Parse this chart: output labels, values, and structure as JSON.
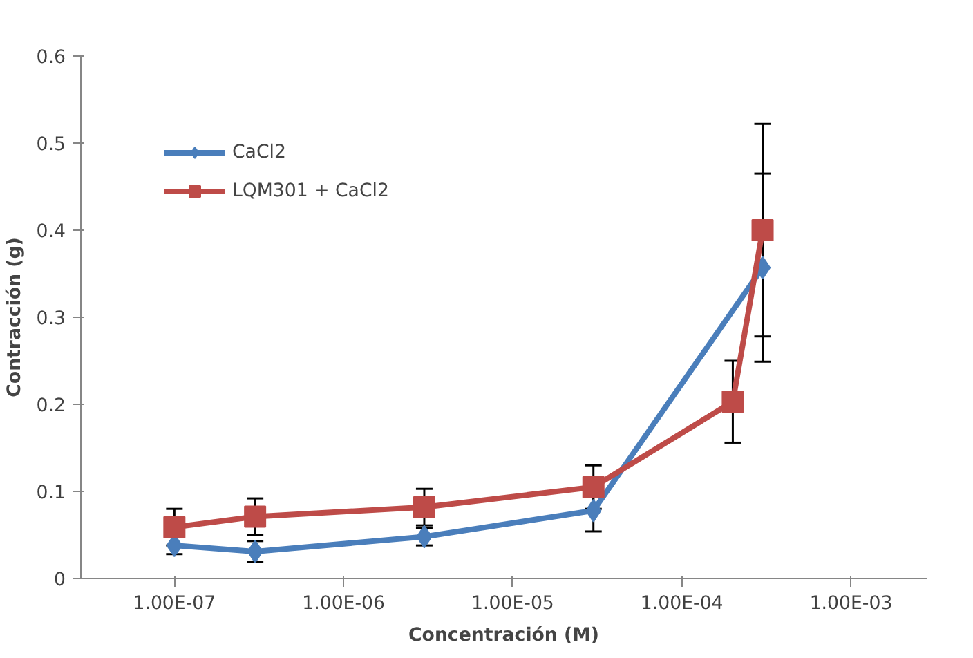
{
  "chart_data": {
    "type": "line",
    "xlabel": "Concentración (M)",
    "ylabel": "Contracción (g)",
    "x": [
      1e-07,
      3e-07,
      3e-06,
      3e-05,
      0.0002,
      0.0003
    ],
    "log": "x",
    "xlim": [
      2.8e-08,
      0.0028
    ],
    "xticks": [
      {
        "value": 1e-07,
        "label": "1.00E-07"
      },
      {
        "value": 1e-06,
        "label": "1.00E-06"
      },
      {
        "value": 1e-05,
        "label": "1.00E-05"
      },
      {
        "value": 0.0001,
        "label": "1.00E-04"
      },
      {
        "value": 0.001,
        "label": "1.00E-03"
      }
    ],
    "ylim": [
      0,
      0.6
    ],
    "yticks": [
      0,
      0.1,
      0.2,
      0.3,
      0.4,
      0.5,
      0.6
    ],
    "grid": false,
    "legend": "top left",
    "line_style": "solid",
    "series": [
      {
        "name": "CaCl2",
        "color": "#4a7ebb",
        "marker": "diamond",
        "values": [
          0.038,
          0.031,
          0.048,
          0.078,
          null,
          0.357
        ],
        "errors": [
          0.01,
          0.012,
          0.01,
          0.024,
          null,
          0.108
        ]
      },
      {
        "name": "LQM301 + CaCl2",
        "color": "#be4b48",
        "marker": "square",
        "values": [
          0.059,
          0.071,
          0.082,
          0.105,
          0.203,
          0.4
        ],
        "errors": [
          0.021,
          0.021,
          0.021,
          0.025,
          0.047,
          0.122
        ]
      }
    ]
  }
}
